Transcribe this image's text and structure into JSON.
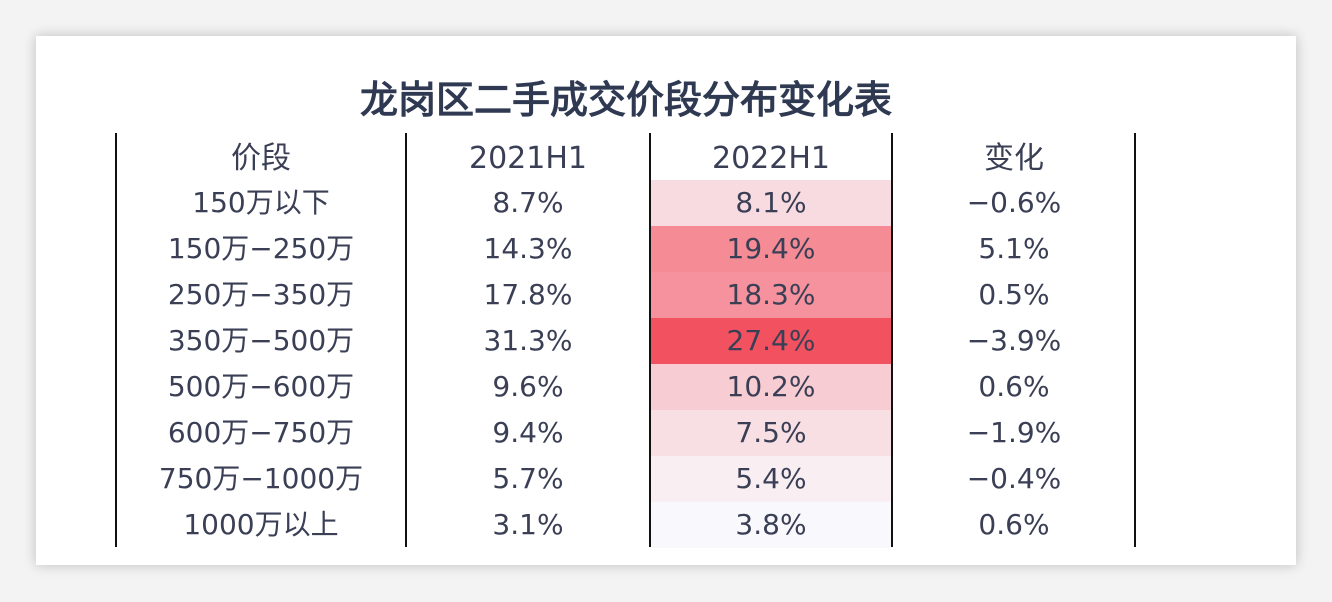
{
  "chart_data": {
    "type": "table",
    "title": "龙岗区二手成交价段分布变化表",
    "columns": [
      "价段",
      "2021H1",
      "2022H1",
      "变化"
    ],
    "rows": [
      {
        "segment": "150万以下",
        "h2021": "8.7%",
        "h2022": "8.1%",
        "change": "−0.6%",
        "h2022_value": 8.1
      },
      {
        "segment": "150万−250万",
        "h2021": "14.3%",
        "h2022": "19.4%",
        "change": "5.1%",
        "h2022_value": 19.4
      },
      {
        "segment": "250万−350万",
        "h2021": "17.8%",
        "h2022": "18.3%",
        "change": "0.5%",
        "h2022_value": 18.3
      },
      {
        "segment": "350万−500万",
        "h2021": "31.3%",
        "h2022": "27.4%",
        "change": "−3.9%",
        "h2022_value": 27.4
      },
      {
        "segment": "500万−600万",
        "h2021": "9.6%",
        "h2022": "10.2%",
        "change": "0.6%",
        "h2022_value": 10.2
      },
      {
        "segment": "600万−750万",
        "h2021": "9.4%",
        "h2022": "7.5%",
        "change": "−1.9%",
        "h2022_value": 7.5
      },
      {
        "segment": "750万−1000万",
        "h2021": "5.7%",
        "h2022": "5.4%",
        "change": "−0.4%",
        "h2022_value": 5.4
      },
      {
        "segment": "1000万以上",
        "h2021": "3.1%",
        "h2022": "3.8%",
        "change": "0.6%",
        "h2022_value": 3.8
      }
    ],
    "heatmap_column": "2022H1",
    "heatmap_colors": {
      "low": "#f9f9fd",
      "high": "#f25260"
    }
  }
}
